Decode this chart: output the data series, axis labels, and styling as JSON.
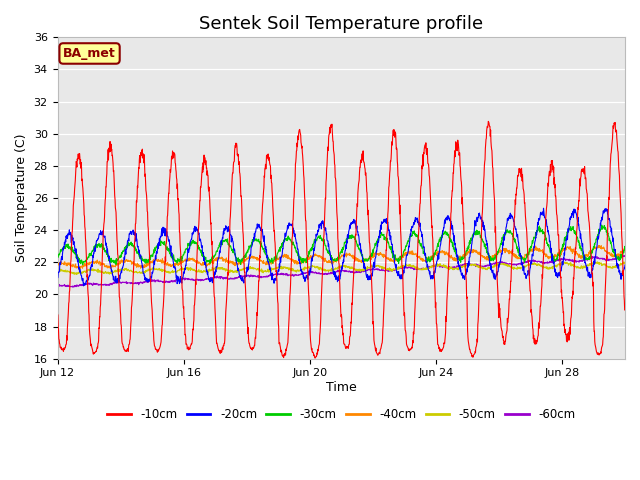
{
  "title": "Sentek Soil Temperature profile",
  "xlabel": "Time",
  "ylabel": "Soil Temperature (C)",
  "ylim": [
    16,
    36
  ],
  "yticks": [
    16,
    18,
    20,
    22,
    24,
    26,
    28,
    30,
    32,
    34,
    36
  ],
  "xtick_labels": [
    "Jun 12",
    "Jun 16",
    "Jun 20",
    "Jun 24",
    "Jun 28"
  ],
  "xtick_positions": [
    0,
    4,
    8,
    12,
    16
  ],
  "fig_bg_color": "#ffffff",
  "plot_bg_color": "#e8e8e8",
  "grid_color": "#ffffff",
  "annotation_label": "BA_met",
  "annotation_bg": "#ffff99",
  "annotation_border": "#8b0000",
  "legend_entries": [
    "-10cm",
    "-20cm",
    "-30cm",
    "-40cm",
    "-50cm",
    "-60cm"
  ],
  "line_colors": [
    "#ff0000",
    "#0000ff",
    "#00cc00",
    "#ff8800",
    "#cccc00",
    "#9900cc"
  ],
  "n_days": 18,
  "points_per_day": 96
}
